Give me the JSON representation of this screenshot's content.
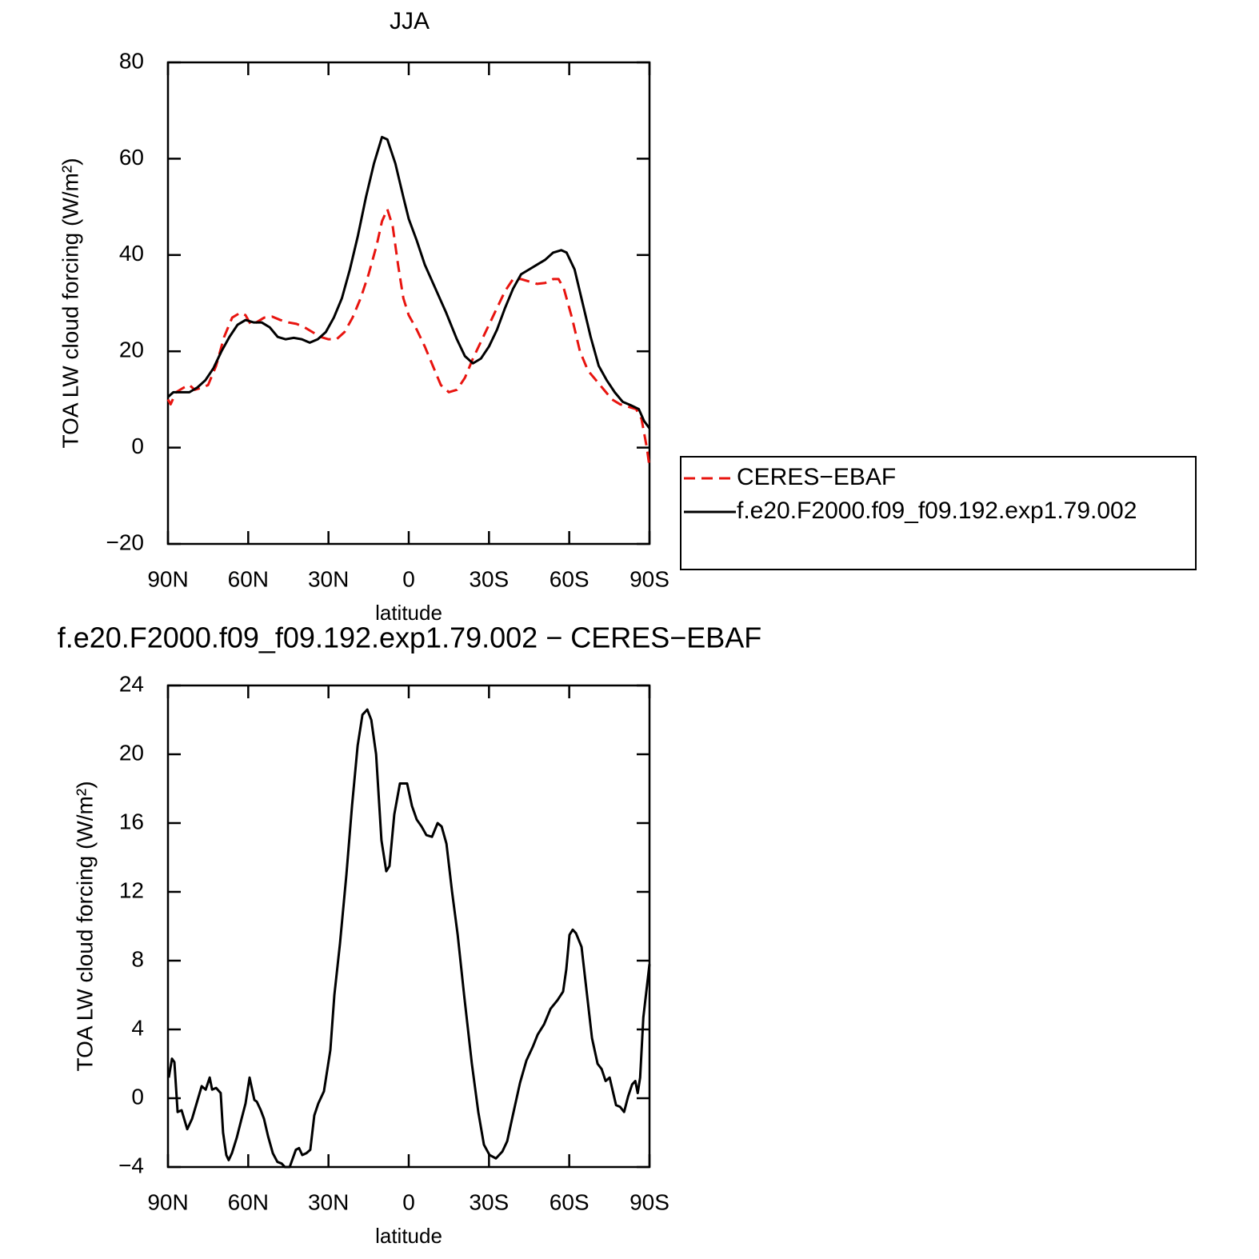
{
  "chart_data": [
    {
      "type": "line",
      "title": "JJA",
      "xlabel": "latitude",
      "ylabel": "TOA LW cloud forcing (W/m²)",
      "xlim": [
        90,
        -90
      ],
      "xticks": [
        {
          "value": 90,
          "label": "90N"
        },
        {
          "value": 60,
          "label": "60N"
        },
        {
          "value": 30,
          "label": "30N"
        },
        0,
        {
          "value": -30,
          "label": "30S"
        },
        {
          "value": -60,
          "label": "60S"
        },
        {
          "value": -90,
          "label": "90S"
        }
      ],
      "ylim": [
        -20,
        80
      ],
      "yticks": [
        {
          "value": -20,
          "label": "−20"
        },
        0,
        20,
        40,
        60,
        80
      ],
      "grid": false,
      "legend": "right",
      "series": [
        {
          "name": "CERES−EBAF",
          "color": "#e8140f",
          "dash": "dashed",
          "x": [
            90,
            89,
            87,
            84,
            82,
            80,
            77,
            75,
            72,
            69,
            66,
            63,
            61,
            59,
            57,
            54,
            51,
            48,
            45,
            42,
            39,
            36,
            33,
            30,
            27,
            24,
            21,
            18,
            15,
            12,
            10,
            8,
            6,
            4,
            2,
            0,
            -3,
            -6,
            -9,
            -12,
            -15,
            -18,
            -21,
            -24,
            -27,
            -30,
            -33,
            -36,
            -39,
            -42,
            -45,
            -48,
            -51,
            -54,
            -56,
            -58,
            -61,
            -64,
            -67,
            -70,
            -73,
            -76,
            -79,
            -82,
            -85,
            -87,
            -88,
            -89,
            -90
          ],
          "values": [
            10,
            9,
            11.5,
            12.5,
            13,
            12,
            12.5,
            13,
            17,
            23,
            27,
            28,
            27.5,
            25.5,
            26,
            27,
            27.2,
            26.5,
            26,
            25.7,
            25,
            24,
            23,
            22.5,
            22.5,
            24,
            27,
            31,
            36,
            42,
            47,
            49.5,
            46,
            38,
            31,
            27.5,
            24.5,
            21,
            17,
            13,
            11.5,
            12,
            14.5,
            18.5,
            22,
            25.5,
            29,
            32.5,
            35,
            35,
            34.5,
            34,
            34.2,
            35,
            35,
            33,
            27,
            20,
            16,
            14,
            12,
            10,
            9,
            8.5,
            8,
            6,
            3,
            0,
            -4
          ]
        },
        {
          "name": "f.e20.F2000.f09_f09.192.exp1.79.002",
          "color": "#000000",
          "dash": "solid",
          "x": [
            90,
            88,
            85,
            82,
            79,
            76,
            73,
            70,
            67,
            64,
            61,
            58,
            55,
            52,
            49,
            46,
            43,
            40,
            37,
            34,
            31,
            28,
            25,
            22,
            19,
            16,
            13,
            10,
            8,
            5,
            2,
            0,
            -3,
            -6,
            -10,
            -14,
            -18,
            -21,
            -24,
            -27,
            -30,
            -33,
            -36,
            -39,
            -42,
            -45,
            -48,
            -51,
            -54,
            -57,
            -59,
            -62,
            -65,
            -68,
            -71,
            -74,
            -77,
            -80,
            -83,
            -86,
            -88,
            -90
          ],
          "values": [
            10.5,
            11.5,
            11.5,
            11.5,
            12.5,
            14,
            16.5,
            20,
            23,
            25.5,
            26.5,
            26,
            26,
            25,
            23,
            22.5,
            22.8,
            22.5,
            21.8,
            22.5,
            24,
            27,
            31,
            37,
            44,
            52,
            59,
            64.5,
            64,
            59,
            52,
            47.5,
            43,
            38,
            33,
            28,
            22.5,
            19,
            17.5,
            18.5,
            21,
            24.5,
            29,
            33,
            36,
            37,
            38,
            39,
            40.5,
            41,
            40.5,
            37,
            30,
            23,
            17,
            14,
            11.5,
            9.5,
            8.8,
            8,
            5.5,
            4
          ]
        }
      ]
    },
    {
      "type": "line",
      "title": "f.e20.F2000.f09_f09.192.exp1.79.002 − CERES−EBAF",
      "xlabel": "latitude",
      "ylabel": "TOA LW cloud forcing (W/m²)",
      "xlim": [
        90,
        -90
      ],
      "xticks": [
        {
          "value": 90,
          "label": "90N"
        },
        {
          "value": 60,
          "label": "60N"
        },
        {
          "value": 30,
          "label": "30N"
        },
        0,
        {
          "value": -30,
          "label": "30S"
        },
        {
          "value": -60,
          "label": "60S"
        },
        {
          "value": -90,
          "label": "90S"
        }
      ],
      "ylim": [
        -4,
        24
      ],
      "yticks": [
        {
          "value": -4,
          "label": "−4"
        },
        0,
        4,
        8,
        12,
        16,
        20,
        24
      ],
      "grid": false,
      "series": [
        {
          "color": "#000000",
          "dash": "solid",
          "x": [
            89.7,
            88.5,
            87.6,
            86.4,
            84.9,
            82.8,
            81,
            77.4,
            75.9,
            74.4,
            73.5,
            72,
            70.3,
            69.4,
            68.2,
            67.3,
            66.1,
            64.3,
            62.5,
            61,
            59.5,
            57.7,
            56.8,
            55.3,
            54.1,
            52.6,
            50.8,
            49.1,
            47.5,
            46.3,
            44.5,
            42.2,
            41,
            39.8,
            38.3,
            36.8,
            35.3,
            33.8,
            31.7,
            29.3,
            27.8,
            25.7,
            23.3,
            21.2,
            19.1,
            17.3,
            15.5,
            14,
            12.2,
            10.2,
            8.4,
            7.2,
            5.4,
            3.3,
            0.6,
            -1.2,
            -3,
            -4.8,
            -6.6,
            -8.7,
            -10.8,
            -12.3,
            -14.1,
            -16.2,
            -18.3,
            -20.7,
            -23.6,
            -26,
            -28.1,
            -30.2,
            -32.6,
            -35,
            -36.8,
            -38.9,
            -41.6,
            -44,
            -46.4,
            -48.2,
            -50.6,
            -53,
            -55.6,
            -57.7,
            -58.9,
            -60.1,
            -61.3,
            -62.5,
            -64.6,
            -68.5,
            -70.6,
            -72.1,
            -73.6,
            -75.1,
            -77.5,
            -79,
            -80.5,
            -82,
            -83.5,
            -84.7,
            -85.6,
            -86.5,
            -87.7,
            -90
          ],
          "values": [
            1.2,
            2.3,
            2.1,
            -0.8,
            -0.7,
            -1.8,
            -1.2,
            0.7,
            0.5,
            1.2,
            0.5,
            0.6,
            0.3,
            -2,
            -3.3,
            -3.6,
            -3.2,
            -2.3,
            -1.2,
            -0.3,
            1.2,
            -0.1,
            -0.2,
            -0.7,
            -1.2,
            -2.2,
            -3.2,
            -3.7,
            -3.8,
            -4,
            -4,
            -3,
            -2.9,
            -3.3,
            -3.2,
            -3,
            -1,
            -0.3,
            0.4,
            2.8,
            6,
            9,
            13,
            17,
            20.5,
            22.3,
            22.6,
            22,
            20,
            15,
            13.2,
            13.5,
            16.5,
            18.3,
            18.3,
            17,
            16.2,
            15.8,
            15.3,
            15.2,
            16,
            15.8,
            14.8,
            12,
            9.5,
            6,
            2,
            -0.8,
            -2.7,
            -3.3,
            -3.5,
            -3.1,
            -2.5,
            -1,
            0.9,
            2.2,
            3,
            3.7,
            4.3,
            5.2,
            5.7,
            6.2,
            7.5,
            9.5,
            9.8,
            9.6,
            8.8,
            3.5,
            2,
            1.7,
            1,
            1.2,
            -0.4,
            -0.5,
            -0.8,
            0.1,
            0.8,
            1,
            0.3,
            1.2,
            4.7,
            7.8
          ]
        }
      ]
    }
  ]
}
